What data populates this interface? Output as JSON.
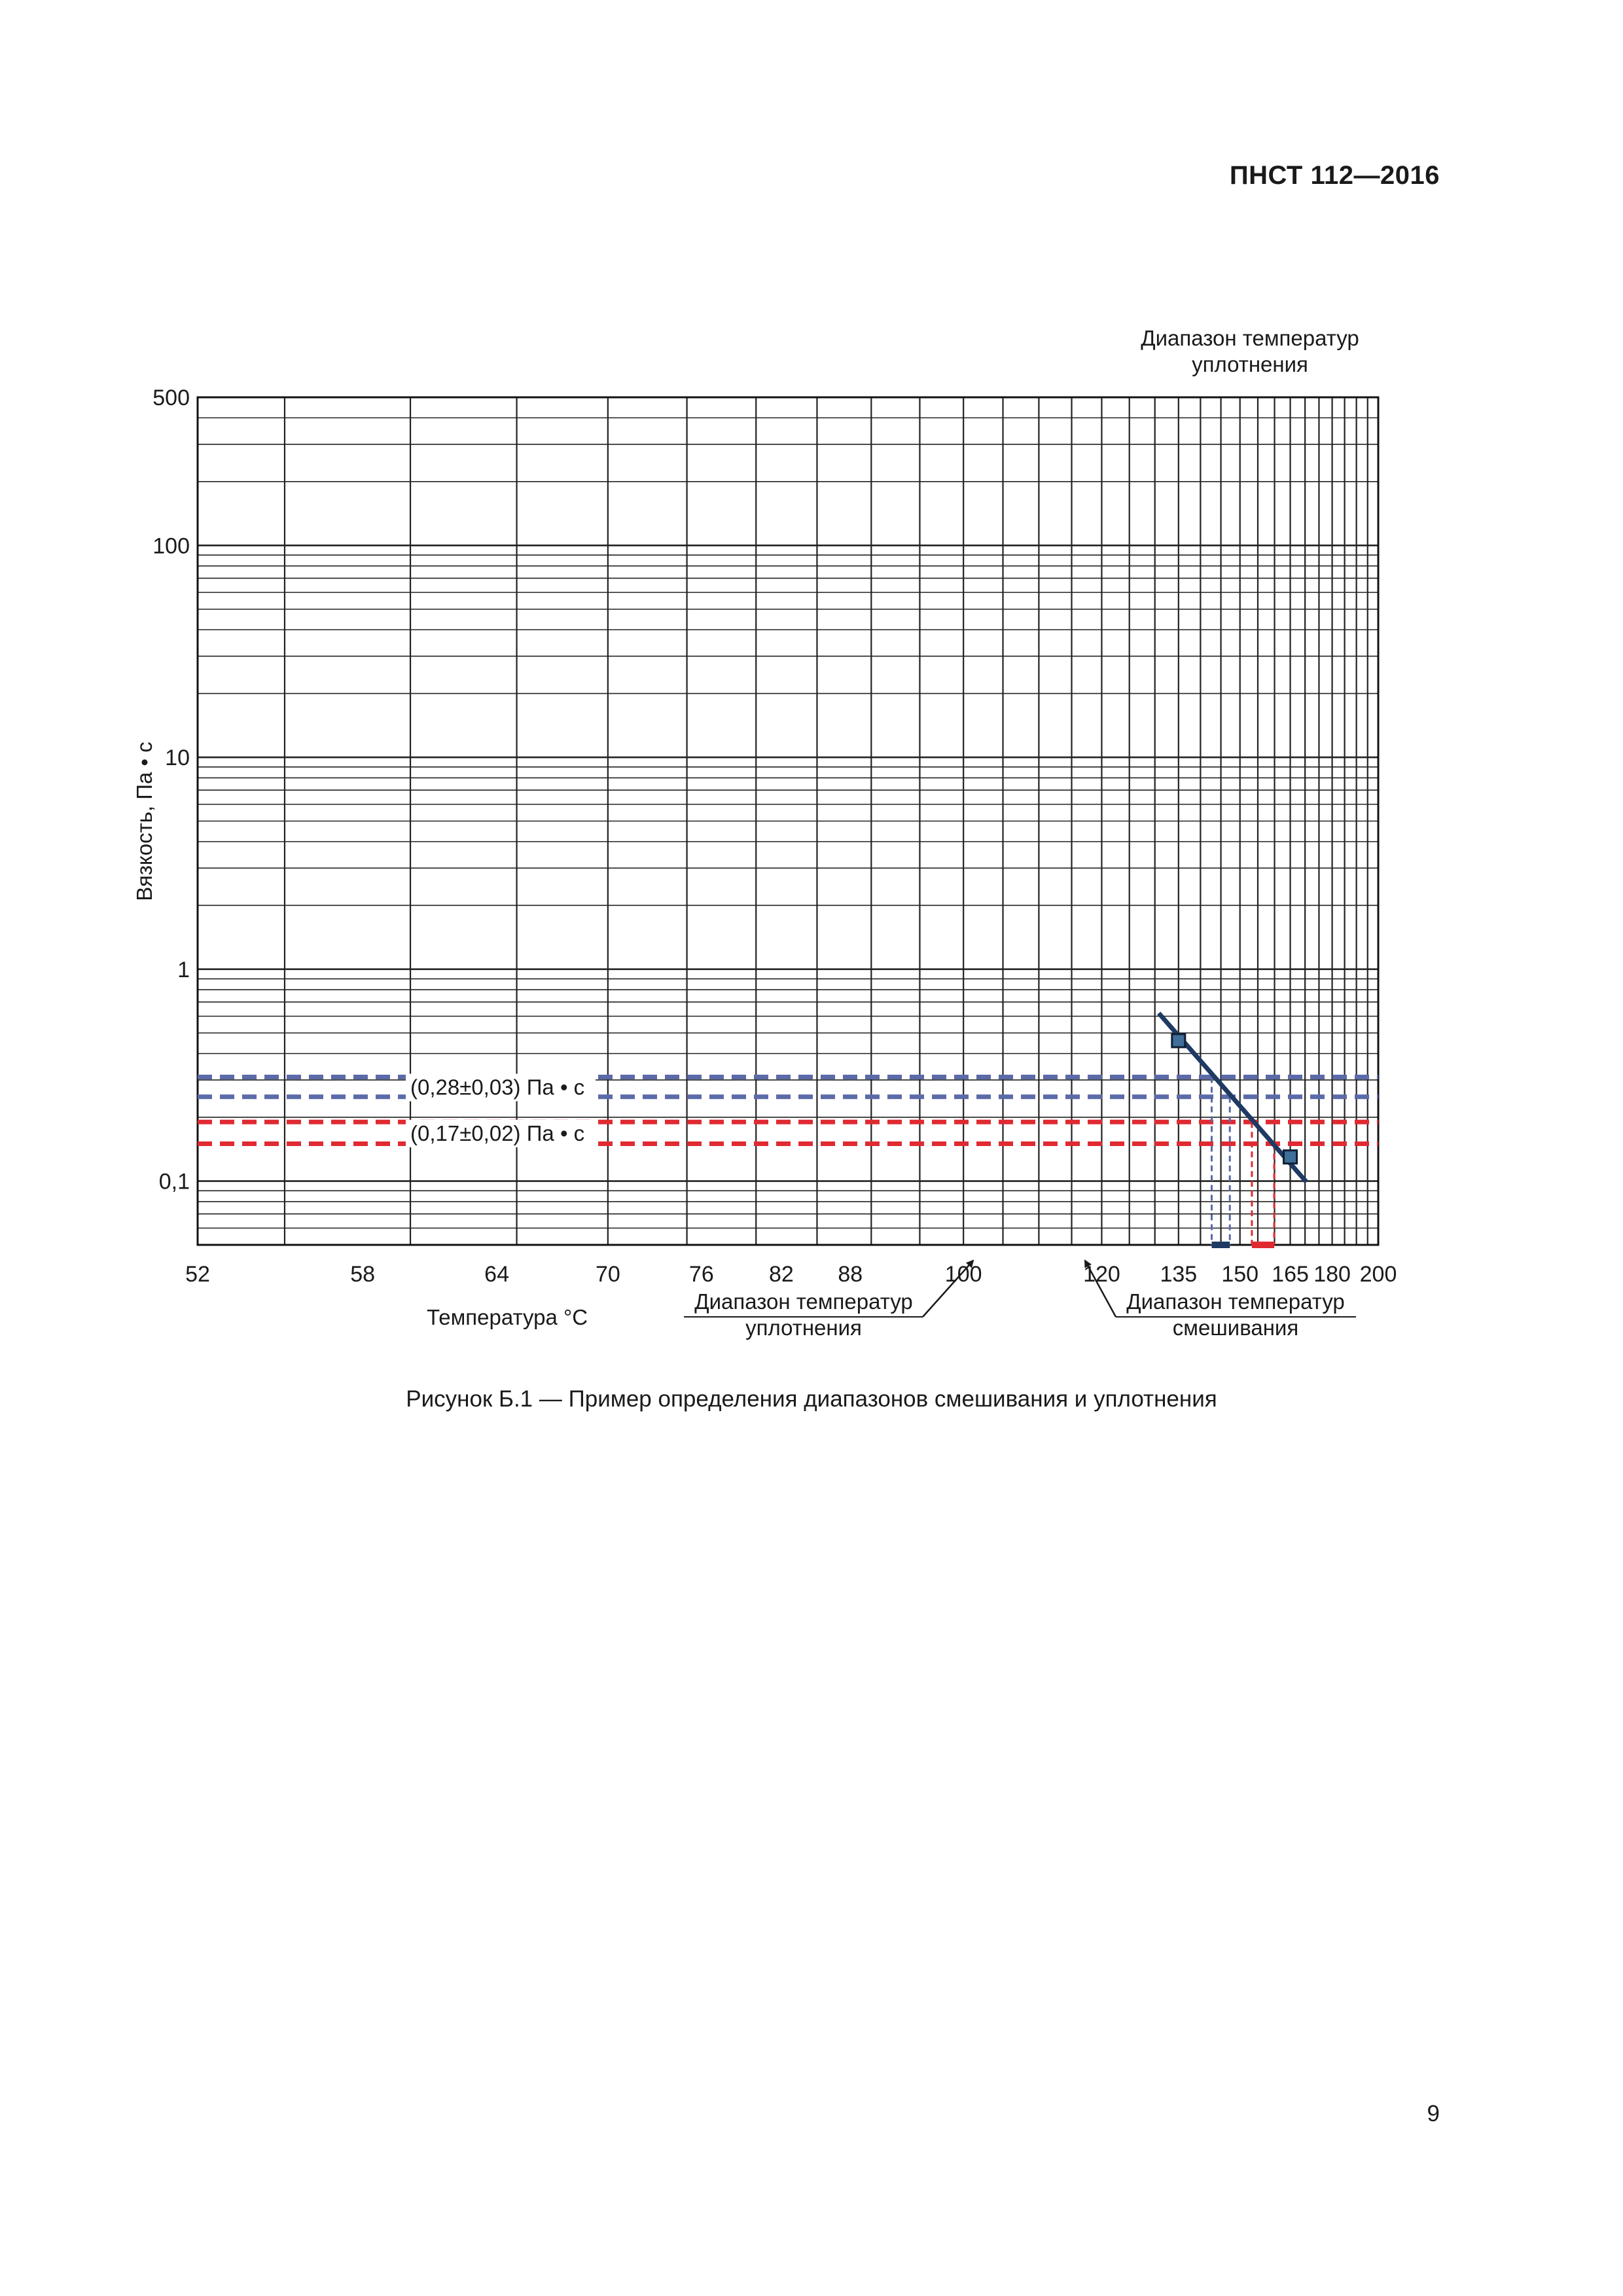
{
  "header": {
    "doc_code": "ПНСТ 112—2016"
  },
  "figure": {
    "caption": "Рисунок Б.1 — Пример определения диапазонов смешивания и уплотнения"
  },
  "footer": {
    "page_number": "9"
  },
  "colors": {
    "blue": "#5b6aa8",
    "navy": "#1f3a63",
    "red": "#e02a32",
    "grid": "#222222"
  },
  "chart_data": {
    "type": "line",
    "xlabel": "Температура °C",
    "ylabel": "Вязкость, Па • с",
    "x_scale": "reciprocal",
    "y_scale": "log",
    "xlim": [
      52,
      200
    ],
    "ylim": [
      0.05,
      500
    ],
    "x_ticks": [
      52,
      58,
      64,
      70,
      76,
      82,
      88,
      100,
      120,
      135,
      150,
      165,
      180,
      200
    ],
    "x_tick_labels": [
      "52",
      "58",
      "64",
      "70",
      "76",
      "82",
      "88",
      "100",
      "120",
      "135",
      "150",
      "165",
      "180",
      "200"
    ],
    "y_ticks": [
      0.1,
      1,
      10,
      100,
      500
    ],
    "y_tick_labels": [
      "0,1",
      "1",
      "10",
      "100",
      "500"
    ],
    "grid": true,
    "top_label": [
      "Диапазон температур",
      "уплотнения"
    ],
    "series": [
      {
        "style": "solid",
        "color": "navy",
        "points": [
          {
            "x": 130.8,
            "y": 0.62
          },
          {
            "x": 170.5,
            "y": 0.099
          }
        ]
      }
    ],
    "measured_points": [
      {
        "x": 135,
        "y": 0.46
      },
      {
        "x": 165,
        "y": 0.13
      }
    ],
    "reference_lines": [
      {
        "label": "(0,28±0,03) Па • с",
        "color": "blue",
        "y_values": [
          0.31,
          0.25
        ],
        "intersect_x": [
          142.7,
          147.3
        ]
      },
      {
        "label": "(0,17±0,02) Па • с",
        "color": "red",
        "y_values": [
          0.19,
          0.15
        ],
        "intersect_x": [
          153.3,
          159.9
        ]
      }
    ],
    "ranges": [
      {
        "name": "compaction",
        "color": "navy",
        "x": [
          142.7,
          147.3
        ],
        "label": [
          "Диапазон температур",
          "уплотнения"
        ]
      },
      {
        "name": "mixing",
        "color": "red",
        "x": [
          153.3,
          159.9
        ],
        "label": [
          "Диапазон температур",
          "смешивания"
        ]
      }
    ]
  }
}
